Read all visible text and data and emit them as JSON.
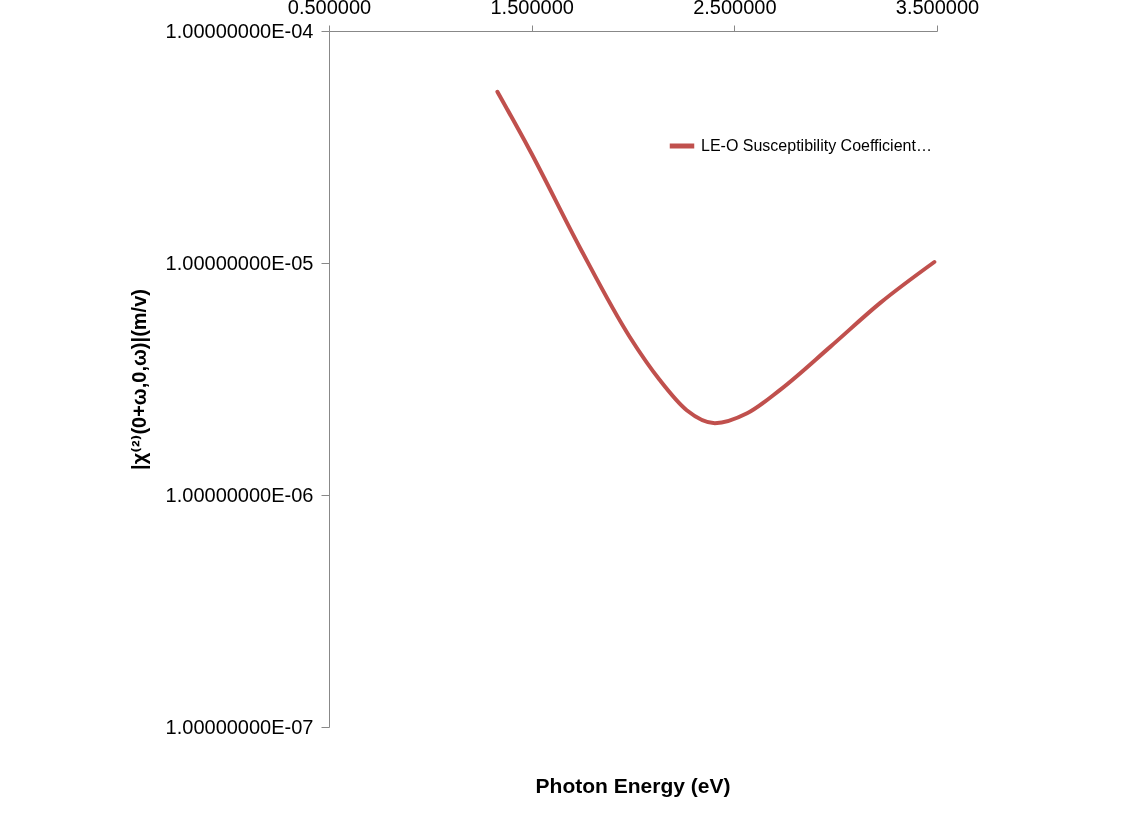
{
  "chart_data": {
    "type": "line",
    "xlabel": "Photon Energy (eV)",
    "ylabel": "|χ⁽²⁾(0+ω,0,ω)|(m/v)",
    "log": "y",
    "grid": false,
    "legend": "top right",
    "marker": "none",
    "line_style": "solid",
    "xlim": [
      0.5,
      3.5
    ],
    "xticks": [
      {
        "value": 0.5,
        "label": "0.500000"
      },
      {
        "value": 1.5,
        "label": "1.500000"
      },
      {
        "value": 2.5,
        "label": "2.500000"
      },
      {
        "value": 3.5,
        "label": "3.500000"
      }
    ],
    "ylim": [
      1e-07,
      0.0001
    ],
    "yticks": [
      {
        "value": 1e-07,
        "label": "1.00000000E-07"
      },
      {
        "value": 1e-06,
        "label": "1.00000000E-06"
      },
      {
        "value": 1e-05,
        "label": "1.00000000E-05"
      },
      {
        "value": 0.0001,
        "label": "1.00000000E-04"
      }
    ],
    "series": [
      {
        "name": "LE-O Susceptibility Coefficient…",
        "color": "#c0504d",
        "x": [
          1.331,
          1.49,
          1.737,
          1.984,
          2.132,
          2.265,
          2.404,
          2.563,
          2.726,
          2.973,
          3.22,
          3.487
        ],
        "values": [
          5.47e-05,
          3.07e-05,
          1.17e-05,
          4.8e-06,
          3.13e-06,
          2.32e-06,
          2.04e-06,
          2.25e-06,
          2.84e-06,
          4.35e-06,
          6.73e-06,
          1.01e-05
        ]
      }
    ]
  }
}
